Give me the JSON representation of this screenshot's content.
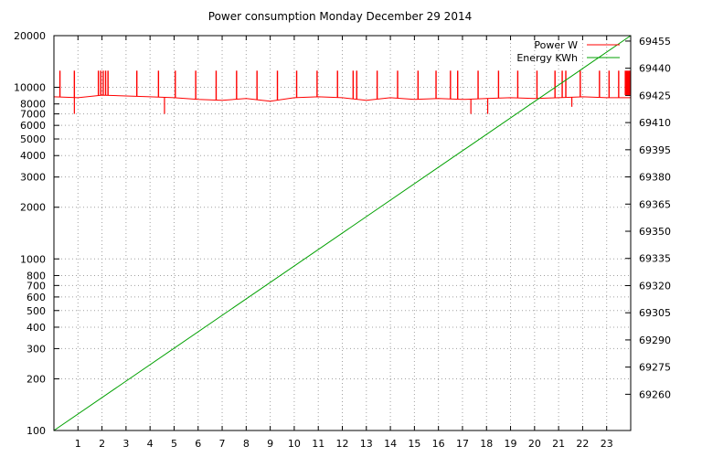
{
  "chart_data": {
    "type": "line",
    "title": "Power consumption Monday December 29 2014",
    "xlabel": "",
    "ylabel": "",
    "y2label": "",
    "grid": true,
    "legend_position": "top-right",
    "x_range": [
      0,
      24
    ],
    "x_ticks": [
      "1",
      "2",
      "3",
      "4",
      "5",
      "6",
      "7",
      "8",
      "9",
      "10",
      "11",
      "12",
      "13",
      "14",
      "15",
      "16",
      "17",
      "18",
      "19",
      "20",
      "21",
      "22",
      "23"
    ],
    "y_scale": "log",
    "y_range": [
      100,
      20000
    ],
    "y_ticks": [
      100,
      200,
      300,
      400,
      500,
      600,
      700,
      800,
      1000,
      2000,
      3000,
      4000,
      5000,
      6000,
      7000,
      8000,
      10000,
      20000
    ],
    "y_tick_labels": [
      "100",
      "200",
      "300",
      "400",
      "500",
      "600",
      "700",
      "800",
      "1000",
      "2000",
      "3000",
      "4000",
      "5000",
      "6000",
      "7000",
      "8000",
      "10000",
      "20000"
    ],
    "y2_range": [
      69240,
      69458
    ],
    "y2_ticks": [
      69260,
      69275,
      69290,
      69305,
      69320,
      69335,
      69350,
      69365,
      69380,
      69395,
      69410,
      69425,
      69440,
      69455
    ],
    "y2_tick_labels": [
      "69260",
      "69275",
      "69290",
      "69305",
      "69320",
      "69335",
      "69350",
      "69365",
      "69380",
      "69395",
      "69410",
      "69425",
      "69440",
      "69455"
    ],
    "series": [
      {
        "name": "Power W",
        "color": "#ff0000",
        "axis": "left",
        "baseline_x": [
          0,
          1,
          2,
          3,
          4,
          5,
          6,
          7,
          8,
          9,
          10,
          11,
          12,
          13,
          14,
          15,
          16,
          17,
          18,
          19,
          20,
          21,
          22,
          23,
          24
        ],
        "baseline_y": [
          8800,
          8700,
          9000,
          8900,
          8800,
          8700,
          8500,
          8400,
          8600,
          8300,
          8700,
          8800,
          8700,
          8400,
          8700,
          8500,
          8600,
          8500,
          8600,
          8700,
          8600,
          8700,
          8800,
          8700,
          8700
        ],
        "spikes_x": [
          0.25,
          0.85,
          1.85,
          1.95,
          2.05,
          2.15,
          2.25,
          3.45,
          4.35,
          5.05,
          5.9,
          6.75,
          7.6,
          8.45,
          9.3,
          10.1,
          10.95,
          11.8,
          12.45,
          12.6,
          13.45,
          14.3,
          15.15,
          15.9,
          16.5,
          16.8,
          17.65,
          18.5,
          19.3,
          20.1,
          20.85,
          21.15,
          21.3,
          21.9,
          22.7,
          23.1,
          23.5
        ],
        "spikes_y": [
          12500,
          12500,
          12500,
          12500,
          12500,
          12500,
          12500,
          12500,
          12500,
          12500,
          12500,
          12500,
          12500,
          12500,
          12500,
          12500,
          12500,
          12500,
          12500,
          12500,
          12500,
          12500,
          12500,
          12500,
          12500,
          12500,
          12500,
          12500,
          12500,
          12500,
          12500,
          12500,
          12500,
          12500,
          12500,
          12500,
          12500
        ],
        "dips_x": [
          0.85,
          4.6,
          17.35,
          18.05,
          21.55
        ],
        "dips_y": [
          7000,
          7000,
          7000,
          7000,
          7700
        ],
        "block_x": [
          23.75,
          24
        ],
        "block_y": [
          9000,
          12500
        ]
      },
      {
        "name": "Energy KWh",
        "color": "#00a000",
        "axis": "right",
        "x": [
          0,
          24
        ],
        "y": [
          69240,
          69458
        ]
      }
    ]
  }
}
